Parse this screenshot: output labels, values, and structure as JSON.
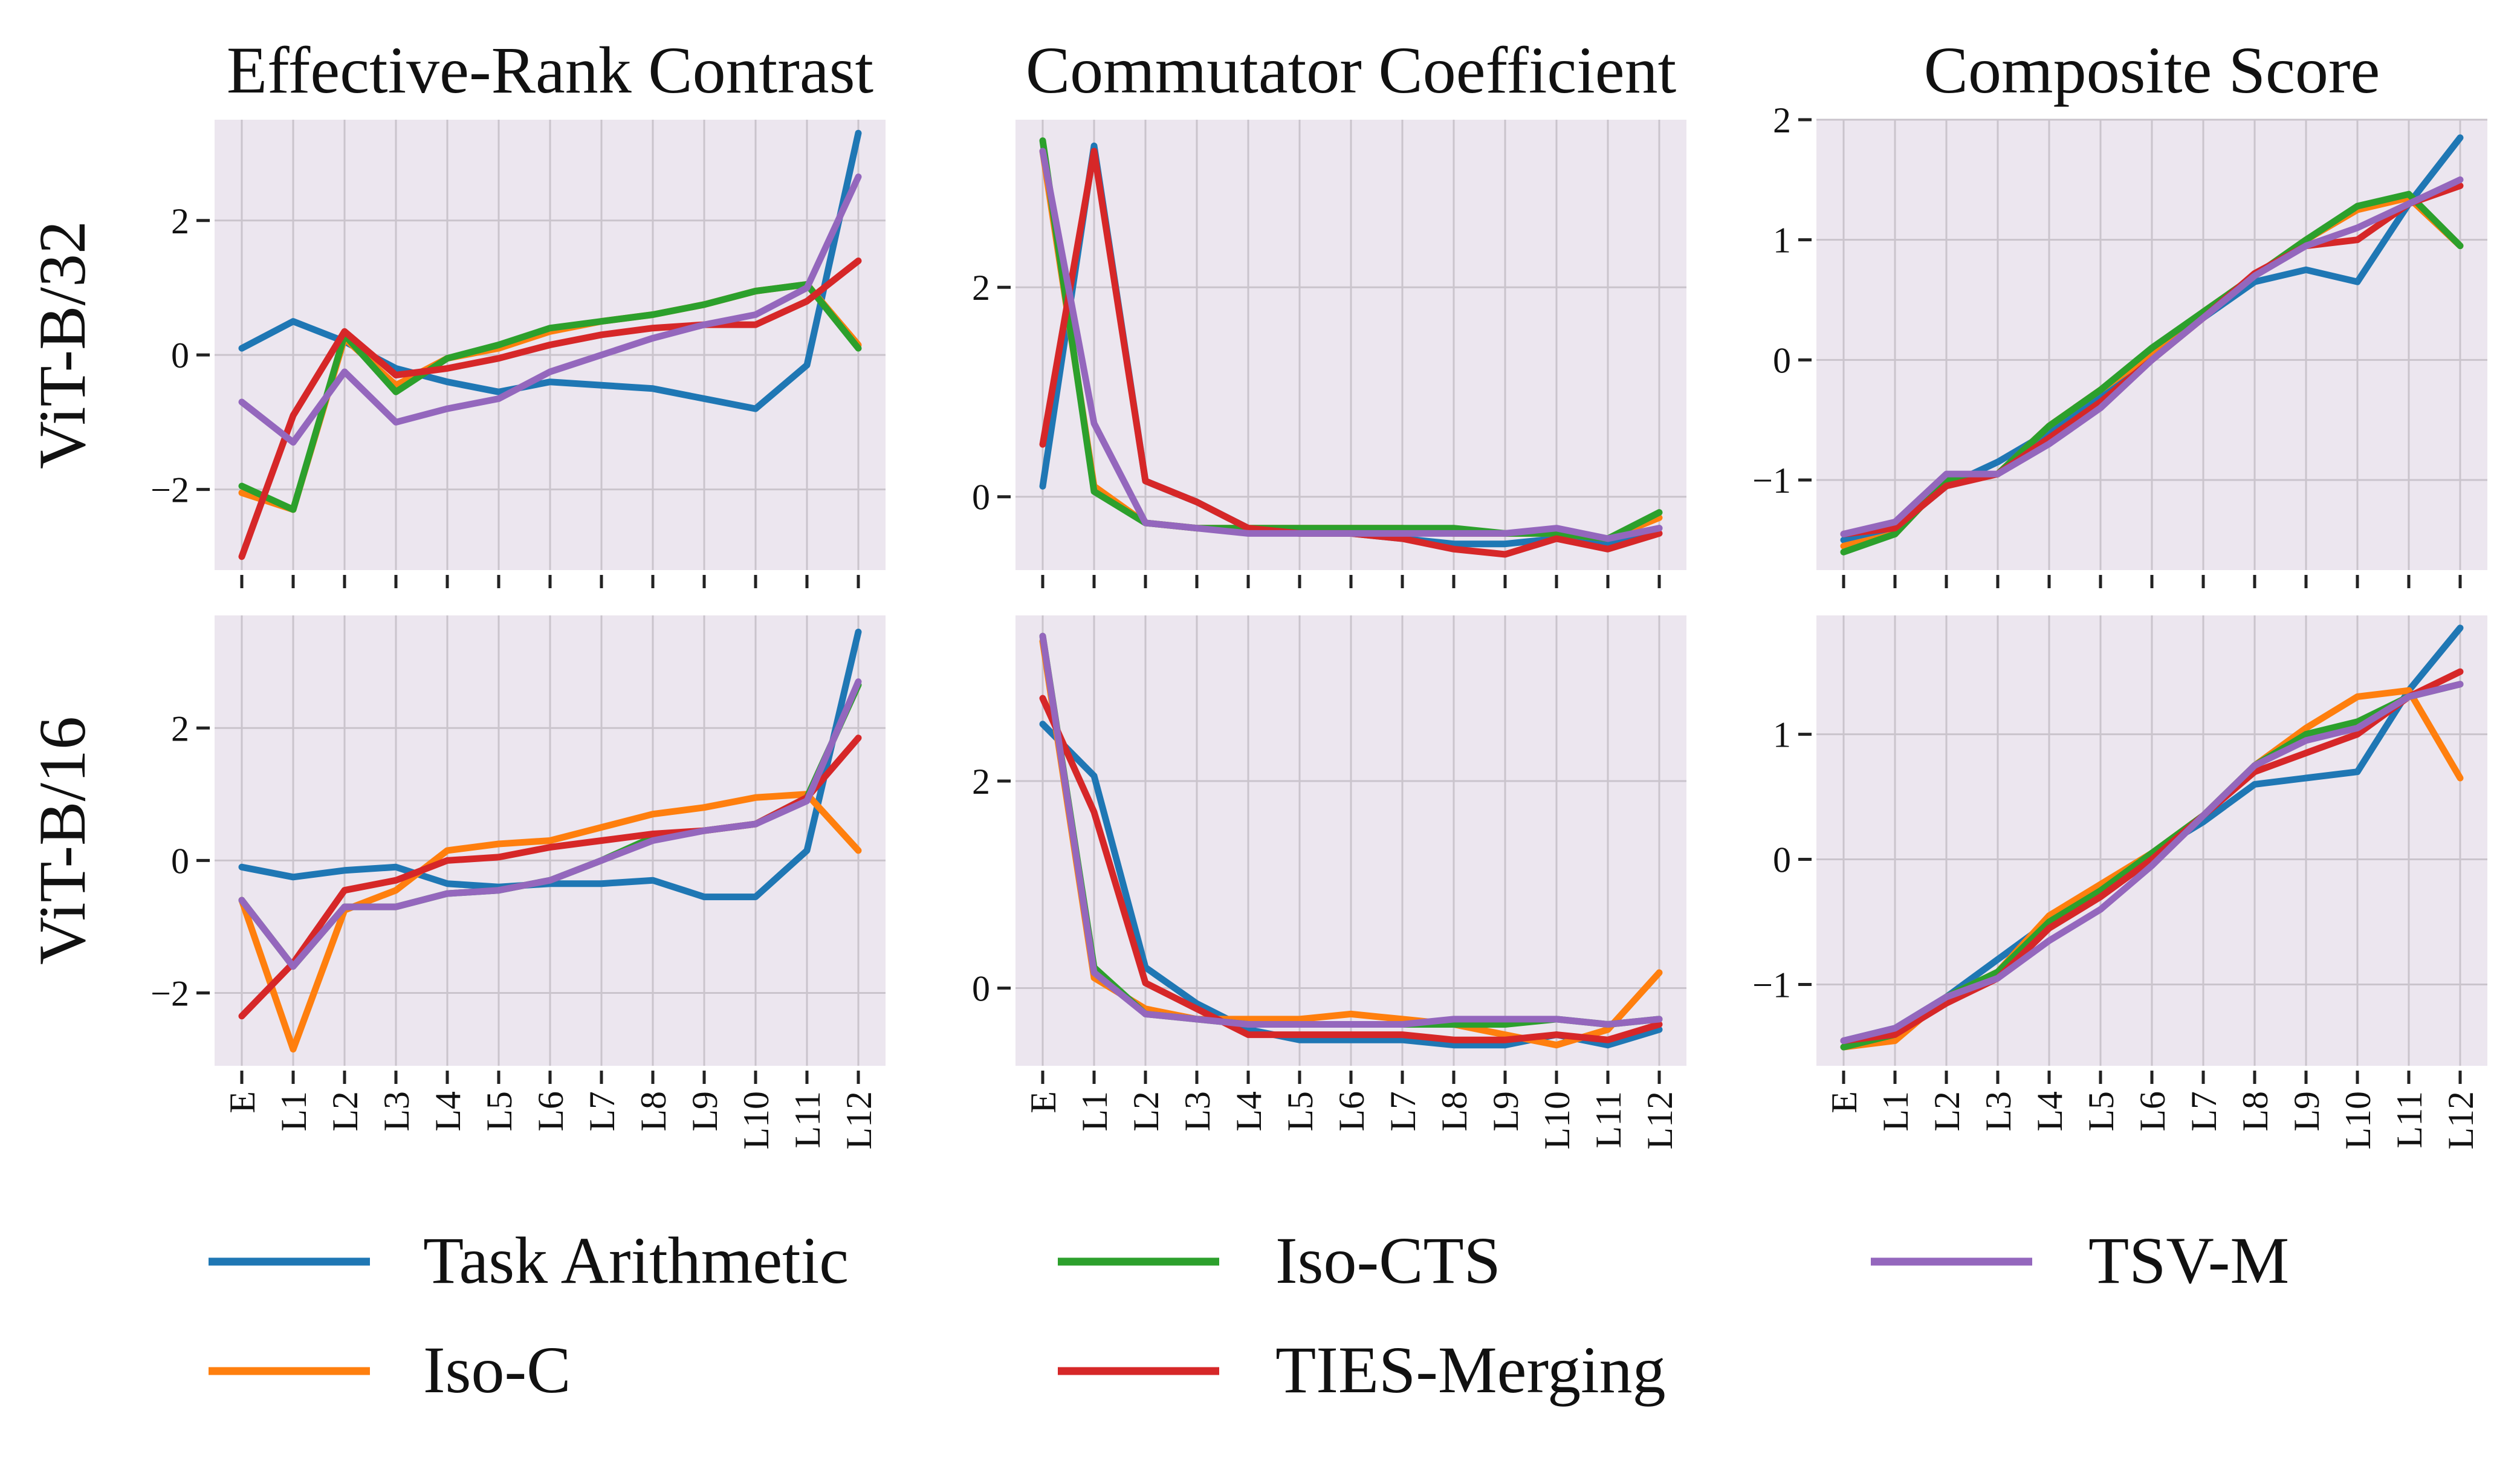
{
  "colors": {
    "Task Arithmetic": "#1f77b4",
    "Iso-C": "#ff7f0e",
    "Iso-CTS": "#2ca02c",
    "TIES-Merging": "#d62728",
    "TSV-M": "#9467bd"
  },
  "legend": [
    "Task Arithmetic",
    "Iso-C",
    "Iso-CTS",
    "TIES-Merging",
    "TSV-M"
  ],
  "chart_data": [
    {
      "type": "line",
      "panel": "r0c0",
      "title": "Effective-Rank Contrast",
      "row_label": "ViT-B/32",
      "categories": [
        "E",
        "L1",
        "L2",
        "L3",
        "L4",
        "L5",
        "L6",
        "L7",
        "L8",
        "L9",
        "L10",
        "L11",
        "L12"
      ],
      "ylim": [
        -3.2,
        3.5
      ],
      "yticks": [
        2,
        0,
        -2
      ],
      "ytick_labels": [
        "2",
        "0",
        "−2"
      ],
      "series": [
        {
          "name": "Task Arithmetic",
          "values": [
            0.1,
            0.5,
            0.2,
            -0.2,
            -0.4,
            -0.55,
            -0.4,
            -0.45,
            -0.5,
            -0.65,
            -0.8,
            -0.15,
            3.3
          ]
        },
        {
          "name": "Iso-C",
          "values": [
            -2.05,
            -2.3,
            0.25,
            -0.45,
            -0.05,
            0.1,
            0.35,
            0.5,
            0.6,
            0.75,
            0.95,
            1.05,
            0.15
          ]
        },
        {
          "name": "Iso-CTS",
          "values": [
            -1.95,
            -2.3,
            0.3,
            -0.55,
            -0.05,
            0.15,
            0.4,
            0.5,
            0.6,
            0.75,
            0.95,
            1.05,
            0.1
          ]
        },
        {
          "name": "TIES-Merging",
          "values": [
            -3.0,
            -0.9,
            0.35,
            -0.3,
            -0.2,
            -0.05,
            0.15,
            0.3,
            0.4,
            0.45,
            0.45,
            0.8,
            1.4
          ]
        },
        {
          "name": "TSV-M",
          "values": [
            -0.7,
            -1.3,
            -0.25,
            -1.0,
            -0.8,
            -0.65,
            -0.25,
            0.0,
            0.25,
            0.45,
            0.6,
            1.0,
            2.65
          ]
        }
      ]
    },
    {
      "type": "line",
      "panel": "r0c1",
      "title": "Commutator Coefficient",
      "row_label": "",
      "categories": [
        "E",
        "L1",
        "L2",
        "L3",
        "L4",
        "L5",
        "L6",
        "L7",
        "L8",
        "L9",
        "L10",
        "L11",
        "L12"
      ],
      "ylim": [
        -0.7,
        3.6
      ],
      "yticks": [
        2,
        0
      ],
      "ytick_labels": [
        "2",
        "0"
      ],
      "series": [
        {
          "name": "Task Arithmetic",
          "values": [
            0.1,
            3.35,
            0.15,
            -0.05,
            -0.3,
            -0.35,
            -0.35,
            -0.4,
            -0.45,
            -0.45,
            -0.4,
            -0.45,
            -0.3
          ]
        },
        {
          "name": "Iso-C",
          "values": [
            3.3,
            0.1,
            -0.25,
            -0.3,
            -0.3,
            -0.3,
            -0.3,
            -0.3,
            -0.35,
            -0.35,
            -0.35,
            -0.4,
            -0.2
          ]
        },
        {
          "name": "Iso-CTS",
          "values": [
            3.4,
            0.05,
            -0.25,
            -0.3,
            -0.3,
            -0.3,
            -0.3,
            -0.3,
            -0.3,
            -0.35,
            -0.35,
            -0.4,
            -0.15
          ]
        },
        {
          "name": "TIES-Merging",
          "values": [
            0.5,
            3.3,
            0.15,
            -0.05,
            -0.3,
            -0.35,
            -0.35,
            -0.4,
            -0.5,
            -0.55,
            -0.4,
            -0.5,
            -0.35
          ]
        },
        {
          "name": "TSV-M",
          "values": [
            3.3,
            0.7,
            -0.25,
            -0.3,
            -0.35,
            -0.35,
            -0.35,
            -0.35,
            -0.35,
            -0.35,
            -0.3,
            -0.4,
            -0.3
          ]
        }
      ]
    },
    {
      "type": "line",
      "panel": "r0c2",
      "title": "Composite Score",
      "row_label": "",
      "categories": [
        "E",
        "L1",
        "L2",
        "L3",
        "L4",
        "L5",
        "L6",
        "L7",
        "L8",
        "L9",
        "L10",
        "L11",
        "L12"
      ],
      "ylim": [
        -1.75,
        2.0
      ],
      "yticks": [
        2,
        1,
        0,
        -1
      ],
      "ytick_labels": [
        "2",
        "1",
        "0",
        "−1"
      ],
      "series": [
        {
          "name": "Task Arithmetic",
          "values": [
            -1.5,
            -1.4,
            -1.05,
            -0.85,
            -0.6,
            -0.3,
            0.0,
            0.35,
            0.65,
            0.75,
            0.65,
            1.3,
            1.85
          ]
        },
        {
          "name": "Iso-C",
          "values": [
            -1.55,
            -1.45,
            -1.0,
            -0.95,
            -0.55,
            -0.25,
            0.05,
            0.4,
            0.7,
            1.0,
            1.25,
            1.35,
            0.95
          ]
        },
        {
          "name": "Iso-CTS",
          "values": [
            -1.6,
            -1.45,
            -1.0,
            -0.95,
            -0.55,
            -0.25,
            0.1,
            0.4,
            0.7,
            1.0,
            1.28,
            1.38,
            0.95
          ]
        },
        {
          "name": "TIES-Merging",
          "values": [
            -1.45,
            -1.4,
            -1.05,
            -0.95,
            -0.65,
            -0.35,
            0.0,
            0.35,
            0.72,
            0.95,
            1.0,
            1.3,
            1.45
          ]
        },
        {
          "name": "TSV-M",
          "values": [
            -1.45,
            -1.35,
            -0.95,
            -0.95,
            -0.7,
            -0.4,
            0.0,
            0.35,
            0.7,
            0.95,
            1.1,
            1.3,
            1.5
          ]
        }
      ]
    },
    {
      "type": "line",
      "panel": "r1c0",
      "title": "",
      "row_label": "ViT-B/16",
      "categories": [
        "E",
        "L1",
        "L2",
        "L3",
        "L4",
        "L5",
        "L6",
        "L7",
        "L8",
        "L9",
        "L10",
        "L11",
        "L12"
      ],
      "ylim": [
        -3.1,
        3.7
      ],
      "yticks": [
        2,
        0,
        -2
      ],
      "ytick_labels": [
        "2",
        "0",
        "−2"
      ],
      "series": [
        {
          "name": "Task Arithmetic",
          "values": [
            -0.1,
            -0.25,
            -0.15,
            -0.1,
            -0.35,
            -0.4,
            -0.35,
            -0.35,
            -0.3,
            -0.55,
            -0.55,
            0.15,
            3.45
          ]
        },
        {
          "name": "Iso-C",
          "values": [
            -0.6,
            -2.85,
            -0.75,
            -0.45,
            0.15,
            0.25,
            0.3,
            0.5,
            0.7,
            0.8,
            0.95,
            1.0,
            0.15
          ]
        },
        {
          "name": "Iso-CTS",
          "values": [
            -0.6,
            -1.6,
            -0.7,
            -0.7,
            -0.5,
            -0.45,
            -0.3,
            0.0,
            0.35,
            0.45,
            0.55,
            0.95,
            2.65
          ]
        },
        {
          "name": "TIES-Merging",
          "values": [
            -2.35,
            -1.55,
            -0.45,
            -0.3,
            0.0,
            0.05,
            0.2,
            0.3,
            0.4,
            0.45,
            0.55,
            0.95,
            1.85
          ]
        },
        {
          "name": "TSV-M",
          "values": [
            -0.6,
            -1.6,
            -0.7,
            -0.7,
            -0.5,
            -0.45,
            -0.3,
            0.0,
            0.3,
            0.45,
            0.55,
            0.9,
            2.7
          ]
        }
      ]
    },
    {
      "type": "line",
      "panel": "r1c1",
      "title": "",
      "row_label": "",
      "categories": [
        "E",
        "L1",
        "L2",
        "L3",
        "L4",
        "L5",
        "L6",
        "L7",
        "L8",
        "L9",
        "L10",
        "L11",
        "L12"
      ],
      "ylim": [
        -0.75,
        3.6
      ],
      "yticks": [
        2,
        0
      ],
      "ytick_labels": [
        "2",
        "0"
      ],
      "series": [
        {
          "name": "Task Arithmetic",
          "values": [
            2.55,
            2.05,
            0.2,
            -0.15,
            -0.4,
            -0.5,
            -0.5,
            -0.5,
            -0.55,
            -0.55,
            -0.45,
            -0.55,
            -0.4
          ]
        },
        {
          "name": "Iso-C",
          "values": [
            3.35,
            0.1,
            -0.2,
            -0.3,
            -0.3,
            -0.3,
            -0.25,
            -0.3,
            -0.35,
            -0.45,
            -0.55,
            -0.4,
            0.15
          ]
        },
        {
          "name": "Iso-CTS",
          "values": [
            3.4,
            0.2,
            -0.25,
            -0.3,
            -0.35,
            -0.35,
            -0.35,
            -0.35,
            -0.35,
            -0.35,
            -0.3,
            -0.35,
            -0.3
          ]
        },
        {
          "name": "TIES-Merging",
          "values": [
            2.8,
            1.7,
            0.05,
            -0.2,
            -0.45,
            -0.45,
            -0.45,
            -0.45,
            -0.5,
            -0.5,
            -0.45,
            -0.5,
            -0.35
          ]
        },
        {
          "name": "TSV-M",
          "values": [
            3.4,
            0.15,
            -0.25,
            -0.3,
            -0.35,
            -0.35,
            -0.35,
            -0.35,
            -0.3,
            -0.3,
            -0.3,
            -0.35,
            -0.3
          ]
        }
      ]
    },
    {
      "type": "line",
      "panel": "r1c2",
      "title": "",
      "row_label": "",
      "categories": [
        "E",
        "L1",
        "L2",
        "L3",
        "L4",
        "L5",
        "L6",
        "L7",
        "L8",
        "L9",
        "L10",
        "L11",
        "L12"
      ],
      "ylim": [
        -1.65,
        1.95
      ],
      "yticks": [
        1,
        0,
        -1
      ],
      "ytick_labels": [
        "1",
        "0",
        "−1"
      ],
      "series": [
        {
          "name": "Task Arithmetic",
          "values": [
            -1.45,
            -1.35,
            -1.1,
            -0.8,
            -0.5,
            -0.25,
            0.05,
            0.3,
            0.6,
            0.65,
            0.7,
            1.35,
            1.85
          ]
        },
        {
          "name": "Iso-C",
          "values": [
            -1.5,
            -1.45,
            -1.1,
            -0.9,
            -0.45,
            -0.2,
            0.05,
            0.35,
            0.75,
            1.05,
            1.3,
            1.35,
            0.65
          ]
        },
        {
          "name": "Iso-CTS",
          "values": [
            -1.5,
            -1.4,
            -1.1,
            -0.9,
            -0.5,
            -0.25,
            0.05,
            0.35,
            0.75,
            1.0,
            1.1,
            1.3,
            1.4
          ]
        },
        {
          "name": "TIES-Merging",
          "values": [
            -1.45,
            -1.4,
            -1.15,
            -0.95,
            -0.55,
            -0.3,
            0.0,
            0.35,
            0.7,
            0.85,
            1.0,
            1.3,
            1.5
          ]
        },
        {
          "name": "TSV-M",
          "values": [
            -1.45,
            -1.35,
            -1.1,
            -0.95,
            -0.65,
            -0.4,
            -0.05,
            0.35,
            0.75,
            0.95,
            1.05,
            1.3,
            1.4
          ]
        }
      ]
    }
  ]
}
